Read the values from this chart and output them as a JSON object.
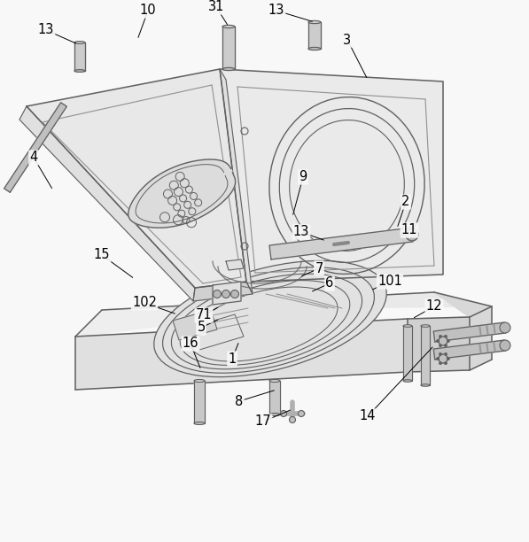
{
  "bg_color": "#f8f8f8",
  "lc": "#606060",
  "lc_d": "#404040",
  "lc_l": "#909090",
  "fill_light": "#eeeeee",
  "fill_mid": "#e0e0e0",
  "fill_dark": "#d0d0d0",
  "figsize": [
    5.97,
    6.12
  ],
  "dpi": 100,
  "labels": [
    [
      "13",
      52,
      34,
      73,
      52
    ],
    [
      "10",
      167,
      12,
      150,
      45
    ],
    [
      "31",
      244,
      8,
      258,
      32
    ],
    [
      "13",
      312,
      12,
      355,
      25
    ],
    [
      "3",
      392,
      45,
      400,
      80
    ],
    [
      "4",
      38,
      178,
      55,
      215
    ],
    [
      "9",
      342,
      205,
      330,
      248
    ],
    [
      "2",
      458,
      230,
      445,
      258
    ],
    [
      "13",
      338,
      263,
      370,
      272
    ],
    [
      "11",
      462,
      260,
      448,
      272
    ],
    [
      "15",
      115,
      288,
      155,
      318
    ],
    [
      "7",
      358,
      305,
      338,
      315
    ],
    [
      "6",
      370,
      322,
      348,
      330
    ],
    [
      "101",
      440,
      320,
      418,
      330
    ],
    [
      "102",
      165,
      345,
      205,
      358
    ],
    [
      "71",
      228,
      358,
      248,
      348
    ],
    [
      "5",
      225,
      372,
      248,
      362
    ],
    [
      "16",
      215,
      390,
      235,
      400
    ],
    [
      "1",
      260,
      408,
      270,
      388
    ],
    [
      "12",
      490,
      348,
      468,
      362
    ],
    [
      "8",
      268,
      455,
      285,
      440
    ],
    [
      "17",
      295,
      478,
      312,
      462
    ],
    [
      "14",
      415,
      472,
      430,
      450
    ]
  ]
}
